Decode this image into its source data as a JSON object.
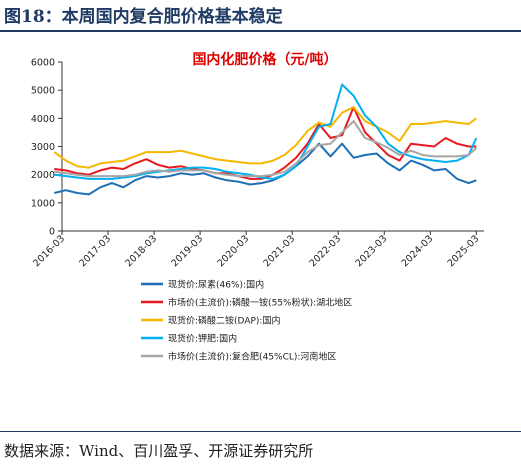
{
  "figure": {
    "title": "图18：本周国内复合肥价格基本稳定",
    "source": "数据来源：Wind、百川盈孚、开源证券研究所"
  },
  "chart_data": {
    "type": "line",
    "title": "国内化肥价格（元/吨）",
    "xlabel": "",
    "ylabel": "",
    "ylim": [
      0,
      6000
    ],
    "yticks": [
      0,
      1000,
      2000,
      3000,
      4000,
      5000,
      6000
    ],
    "x_tick_labels": [
      "2016-03",
      "2017-03",
      "2018-03",
      "2019-03",
      "2020-03",
      "2021-03",
      "2022-03",
      "2023-03",
      "2024-03",
      "2025-03"
    ],
    "grid": false,
    "legend_position": "bottom",
    "series": [
      {
        "name": "现货价:尿素(46%):国内",
        "color": "#1f6fb4",
        "points": [
          [
            "2016-01",
            1350
          ],
          [
            "2016-04",
            1450
          ],
          [
            "2016-07",
            1350
          ],
          [
            "2016-10",
            1300
          ],
          [
            "2017-01",
            1550
          ],
          [
            "2017-04",
            1700
          ],
          [
            "2017-07",
            1550
          ],
          [
            "2017-10",
            1800
          ],
          [
            "2018-01",
            1950
          ],
          [
            "2018-04",
            1900
          ],
          [
            "2018-07",
            1950
          ],
          [
            "2018-10",
            2050
          ],
          [
            "2019-01",
            2000
          ],
          [
            "2019-04",
            2050
          ],
          [
            "2019-07",
            1900
          ],
          [
            "2019-10",
            1800
          ],
          [
            "2020-01",
            1750
          ],
          [
            "2020-04",
            1650
          ],
          [
            "2020-07",
            1700
          ],
          [
            "2020-10",
            1800
          ],
          [
            "2021-01",
            2000
          ],
          [
            "2021-04",
            2300
          ],
          [
            "2021-07",
            2650
          ],
          [
            "2021-10",
            3100
          ],
          [
            "2022-01",
            2650
          ],
          [
            "2022-04",
            3100
          ],
          [
            "2022-07",
            2600
          ],
          [
            "2022-10",
            2700
          ],
          [
            "2023-01",
            2750
          ],
          [
            "2023-04",
            2400
          ],
          [
            "2023-07",
            2150
          ],
          [
            "2023-10",
            2500
          ],
          [
            "2024-01",
            2350
          ],
          [
            "2024-04",
            2150
          ],
          [
            "2024-07",
            2200
          ],
          [
            "2024-10",
            1850
          ],
          [
            "2025-01",
            1700
          ],
          [
            "2025-03",
            1800
          ]
        ]
      },
      {
        "name": "市场价(主流价):磷酸一铵(55%粉状):湖北地区",
        "color": "#e8191e",
        "points": [
          [
            "2016-01",
            2200
          ],
          [
            "2016-04",
            2150
          ],
          [
            "2016-07",
            2050
          ],
          [
            "2016-10",
            2000
          ],
          [
            "2017-01",
            2150
          ],
          [
            "2017-04",
            2250
          ],
          [
            "2017-07",
            2200
          ],
          [
            "2017-10",
            2400
          ],
          [
            "2018-01",
            2550
          ],
          [
            "2018-04",
            2350
          ],
          [
            "2018-07",
            2250
          ],
          [
            "2018-10",
            2300
          ],
          [
            "2019-01",
            2200
          ],
          [
            "2019-04",
            2150
          ],
          [
            "2019-07",
            2050
          ],
          [
            "2019-10",
            2050
          ],
          [
            "2020-01",
            1950
          ],
          [
            "2020-04",
            1850
          ],
          [
            "2020-07",
            1850
          ],
          [
            "2020-10",
            2000
          ],
          [
            "2021-01",
            2250
          ],
          [
            "2021-04",
            2600
          ],
          [
            "2021-07",
            3100
          ],
          [
            "2021-10",
            3800
          ],
          [
            "2022-01",
            3300
          ],
          [
            "2022-04",
            3400
          ],
          [
            "2022-07",
            4400
          ],
          [
            "2022-10",
            3500
          ],
          [
            "2023-01",
            3100
          ],
          [
            "2023-04",
            2700
          ],
          [
            "2023-07",
            2500
          ],
          [
            "2023-10",
            3100
          ],
          [
            "2024-01",
            3050
          ],
          [
            "2024-04",
            3000
          ],
          [
            "2024-07",
            3300
          ],
          [
            "2024-10",
            3100
          ],
          [
            "2025-01",
            3000
          ],
          [
            "2025-03",
            3000
          ]
        ]
      },
      {
        "name": "现货价:磷酸二铵(DAP):国内",
        "color": "#f5b800",
        "points": [
          [
            "2016-01",
            2800
          ],
          [
            "2016-04",
            2500
          ],
          [
            "2016-07",
            2300
          ],
          [
            "2016-10",
            2250
          ],
          [
            "2017-01",
            2400
          ],
          [
            "2017-04",
            2450
          ],
          [
            "2017-07",
            2500
          ],
          [
            "2017-10",
            2650
          ],
          [
            "2018-01",
            2800
          ],
          [
            "2018-04",
            2800
          ],
          [
            "2018-07",
            2800
          ],
          [
            "2018-10",
            2850
          ],
          [
            "2019-01",
            2750
          ],
          [
            "2019-04",
            2650
          ],
          [
            "2019-07",
            2550
          ],
          [
            "2019-10",
            2500
          ],
          [
            "2020-01",
            2450
          ],
          [
            "2020-04",
            2400
          ],
          [
            "2020-07",
            2400
          ],
          [
            "2020-10",
            2500
          ],
          [
            "2021-01",
            2700
          ],
          [
            "2021-04",
            3050
          ],
          [
            "2021-07",
            3550
          ],
          [
            "2021-10",
            3850
          ],
          [
            "2022-01",
            3700
          ],
          [
            "2022-04",
            4200
          ],
          [
            "2022-07",
            4400
          ],
          [
            "2022-10",
            3900
          ],
          [
            "2023-01",
            3700
          ],
          [
            "2023-04",
            3500
          ],
          [
            "2023-07",
            3200
          ],
          [
            "2023-10",
            3800
          ],
          [
            "2024-01",
            3800
          ],
          [
            "2024-04",
            3850
          ],
          [
            "2024-07",
            3900
          ],
          [
            "2024-10",
            3850
          ],
          [
            "2025-01",
            3800
          ],
          [
            "2025-03",
            4000
          ]
        ]
      },
      {
        "name": "现货价:钾肥:国内",
        "color": "#00b0f0",
        "points": [
          [
            "2016-01",
            2000
          ],
          [
            "2016-04",
            1950
          ],
          [
            "2016-07",
            1900
          ],
          [
            "2016-10",
            1850
          ],
          [
            "2017-01",
            1850
          ],
          [
            "2017-04",
            1850
          ],
          [
            "2017-07",
            1900
          ],
          [
            "2017-10",
            1950
          ],
          [
            "2018-01",
            2050
          ],
          [
            "2018-04",
            2100
          ],
          [
            "2018-07",
            2150
          ],
          [
            "2018-10",
            2200
          ],
          [
            "2019-01",
            2250
          ],
          [
            "2019-04",
            2250
          ],
          [
            "2019-07",
            2200
          ],
          [
            "2019-10",
            2100
          ],
          [
            "2020-01",
            2050
          ],
          [
            "2020-04",
            2000
          ],
          [
            "2020-07",
            1900
          ],
          [
            "2020-10",
            1850
          ],
          [
            "2021-01",
            2000
          ],
          [
            "2021-04",
            2300
          ],
          [
            "2021-07",
            3000
          ],
          [
            "2021-10",
            3700
          ],
          [
            "2022-01",
            3800
          ],
          [
            "2022-04",
            5200
          ],
          [
            "2022-07",
            4800
          ],
          [
            "2022-10",
            4100
          ],
          [
            "2023-01",
            3700
          ],
          [
            "2023-04",
            3100
          ],
          [
            "2023-07",
            2800
          ],
          [
            "2023-10",
            2650
          ],
          [
            "2024-01",
            2550
          ],
          [
            "2024-04",
            2500
          ],
          [
            "2024-07",
            2450
          ],
          [
            "2024-10",
            2500
          ],
          [
            "2025-01",
            2700
          ],
          [
            "2025-03",
            3300
          ]
        ]
      },
      {
        "name": "市场价(主流价):复合肥(45%CL):河南地区",
        "color": "#a6a6a6",
        "points": [
          [
            "2016-01",
            2100
          ],
          [
            "2016-04",
            2050
          ],
          [
            "2016-07",
            2000
          ],
          [
            "2016-10",
            1950
          ],
          [
            "2017-01",
            1950
          ],
          [
            "2017-04",
            1950
          ],
          [
            "2017-07",
            1950
          ],
          [
            "2017-10",
            2000
          ],
          [
            "2018-01",
            2100
          ],
          [
            "2018-04",
            2150
          ],
          [
            "2018-07",
            2100
          ],
          [
            "2018-10",
            2150
          ],
          [
            "2019-01",
            2150
          ],
          [
            "2019-04",
            2150
          ],
          [
            "2019-07",
            2050
          ],
          [
            "2019-10",
            2000
          ],
          [
            "2020-01",
            1950
          ],
          [
            "2020-04",
            1950
          ],
          [
            "2020-07",
            1950
          ],
          [
            "2020-10",
            2000
          ],
          [
            "2021-01",
            2100
          ],
          [
            "2021-04",
            2400
          ],
          [
            "2021-07",
            2800
          ],
          [
            "2021-10",
            3050
          ],
          [
            "2022-01",
            3100
          ],
          [
            "2022-04",
            3500
          ],
          [
            "2022-07",
            3900
          ],
          [
            "2022-10",
            3300
          ],
          [
            "2023-01",
            3150
          ],
          [
            "2023-04",
            2950
          ],
          [
            "2023-07",
            2700
          ],
          [
            "2023-10",
            2850
          ],
          [
            "2024-01",
            2700
          ],
          [
            "2024-04",
            2650
          ],
          [
            "2024-07",
            2650
          ],
          [
            "2024-10",
            2650
          ],
          [
            "2025-01",
            2700
          ],
          [
            "2025-03",
            2950
          ]
        ]
      }
    ]
  }
}
